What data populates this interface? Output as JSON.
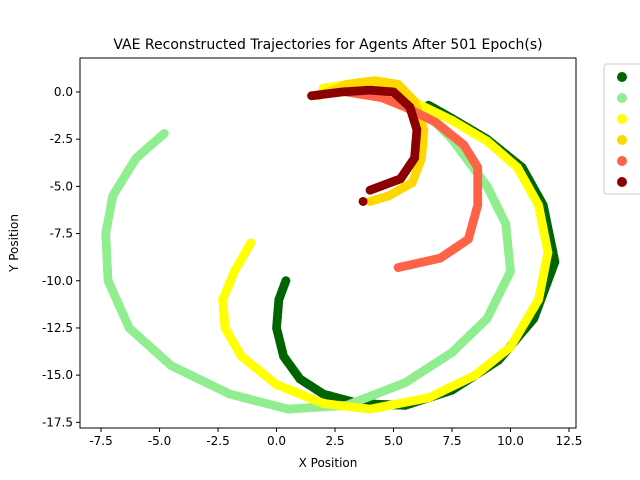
{
  "chart_data": {
    "type": "scatter",
    "title": "VAE Reconstructed Trajectories for Agents After 501 Epoch(s)",
    "xlabel": "X Position",
    "ylabel": "Y Position",
    "xlim": [
      -8.4,
      12.8
    ],
    "ylim": [
      -17.8,
      1.8
    ],
    "x_ticks": [
      -7.5,
      -5.0,
      -2.5,
      0.0,
      2.5,
      5.0,
      7.5,
      10.0,
      12.5
    ],
    "y_ticks": [
      0.0,
      -2.5,
      -5.0,
      -7.5,
      -10.0,
      -12.5,
      -15.0,
      -17.5
    ],
    "grid": false,
    "legend_placement": "outside-top-right",
    "series": [
      {
        "color": "#006400",
        "path": [
          [
            0.4,
            -10.0
          ],
          [
            0.1,
            -11.0
          ],
          [
            0.0,
            -12.5
          ],
          [
            0.3,
            -14.0
          ],
          [
            1.0,
            -15.2
          ],
          [
            2.0,
            -16.0
          ],
          [
            3.5,
            -16.5
          ],
          [
            5.5,
            -16.6
          ],
          [
            7.5,
            -15.8
          ],
          [
            9.5,
            -14.2
          ],
          [
            11.0,
            -12.0
          ],
          [
            11.9,
            -9.0
          ],
          [
            11.4,
            -6.0
          ],
          [
            10.5,
            -4.0
          ],
          [
            9.0,
            -2.5
          ],
          [
            7.5,
            -1.4
          ],
          [
            6.5,
            -0.7
          ]
        ]
      },
      {
        "color": "#90EE90",
        "path": [
          [
            -4.8,
            -2.2
          ],
          [
            -6.0,
            -3.5
          ],
          [
            -7.0,
            -5.5
          ],
          [
            -7.3,
            -7.5
          ],
          [
            -7.2,
            -10.0
          ],
          [
            -6.3,
            -12.5
          ],
          [
            -4.5,
            -14.5
          ],
          [
            -2.0,
            -16.0
          ],
          [
            0.5,
            -16.8
          ],
          [
            3.0,
            -16.6
          ],
          [
            5.5,
            -15.4
          ],
          [
            7.5,
            -13.8
          ],
          [
            9.0,
            -12.0
          ],
          [
            10.0,
            -9.5
          ],
          [
            9.8,
            -7.0
          ],
          [
            9.0,
            -5.0
          ],
          [
            7.5,
            -2.5
          ],
          [
            6.7,
            -1.5
          ]
        ]
      },
      {
        "color": "#FFFF00",
        "path": [
          [
            -1.1,
            -8.0
          ],
          [
            -1.8,
            -9.5
          ],
          [
            -2.3,
            -11.0
          ],
          [
            -2.2,
            -12.5
          ],
          [
            -1.5,
            -14.0
          ],
          [
            0.0,
            -15.5
          ],
          [
            2.0,
            -16.5
          ],
          [
            4.0,
            -16.8
          ],
          [
            6.5,
            -16.2
          ],
          [
            8.5,
            -15.0
          ],
          [
            10.0,
            -13.5
          ],
          [
            11.2,
            -11.0
          ],
          [
            11.6,
            -8.5
          ],
          [
            11.2,
            -6.0
          ],
          [
            10.3,
            -4.0
          ],
          [
            9.0,
            -2.6
          ],
          [
            7.5,
            -1.5
          ],
          [
            5.5,
            -0.3
          ],
          [
            3.5,
            0.5
          ],
          [
            2.0,
            0.2
          ]
        ]
      },
      {
        "color": "#FFD700",
        "path": [
          [
            1.8,
            -0.2
          ],
          [
            3.0,
            0.4
          ],
          [
            4.2,
            0.6
          ],
          [
            5.2,
            0.4
          ],
          [
            5.9,
            -0.5
          ],
          [
            6.3,
            -2.0
          ],
          [
            6.2,
            -3.5
          ],
          [
            5.8,
            -4.8
          ],
          [
            4.8,
            -5.5
          ],
          [
            4.0,
            -5.8
          ]
        ]
      },
      {
        "color": "#FF6347",
        "path": [
          [
            3.0,
            0.0
          ],
          [
            4.5,
            -0.3
          ],
          [
            5.5,
            -0.8
          ],
          [
            6.8,
            -1.6
          ],
          [
            8.0,
            -2.8
          ],
          [
            8.6,
            -4.0
          ],
          [
            8.6,
            -6.0
          ],
          [
            8.2,
            -7.8
          ],
          [
            7.0,
            -8.8
          ],
          [
            5.2,
            -9.3
          ]
        ]
      },
      {
        "color": "#8B0000",
        "path": [
          [
            1.5,
            -0.2
          ],
          [
            2.8,
            0.0
          ],
          [
            4.0,
            0.1
          ],
          [
            5.0,
            0.0
          ],
          [
            5.7,
            -0.8
          ],
          [
            6.0,
            -2.0
          ],
          [
            5.9,
            -3.5
          ],
          [
            5.3,
            -4.6
          ],
          [
            4.0,
            -5.2
          ]
        ],
        "stray_points": [
          [
            3.7,
            -5.8
          ]
        ]
      }
    ]
  }
}
